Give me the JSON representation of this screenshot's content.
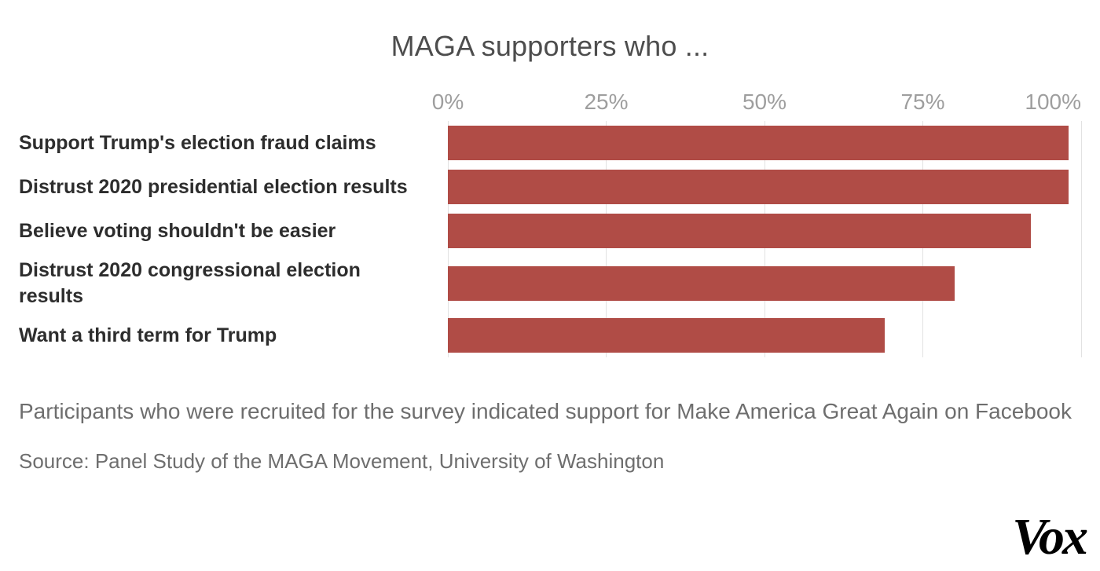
{
  "chart_data": {
    "type": "bar",
    "orientation": "horizontal",
    "title": "MAGA supporters who ...",
    "categories": [
      "Support Trump's election fraud claims",
      "Distrust 2020 presidential election results",
      "Believe voting shouldn't be easier",
      "Distrust 2020 congressional election results",
      "Want a third term for Trump"
    ],
    "values": [
      98,
      98,
      92,
      80,
      69
    ],
    "x_ticks": [
      "0%",
      "25%",
      "50%",
      "75%",
      "100%"
    ],
    "xlim": [
      0,
      100
    ],
    "xlabel": "",
    "ylabel": "",
    "grid": "vertical",
    "legend": "none",
    "bar_color": "#b04c46",
    "gridline_color": "#e2e2e2"
  },
  "note": "Participants who were recruited for the survey indicated support for Make America Great Again on Facebook",
  "source": "Source: Panel Study of the MAGA Movement, University of Washington",
  "logo": "Vox"
}
